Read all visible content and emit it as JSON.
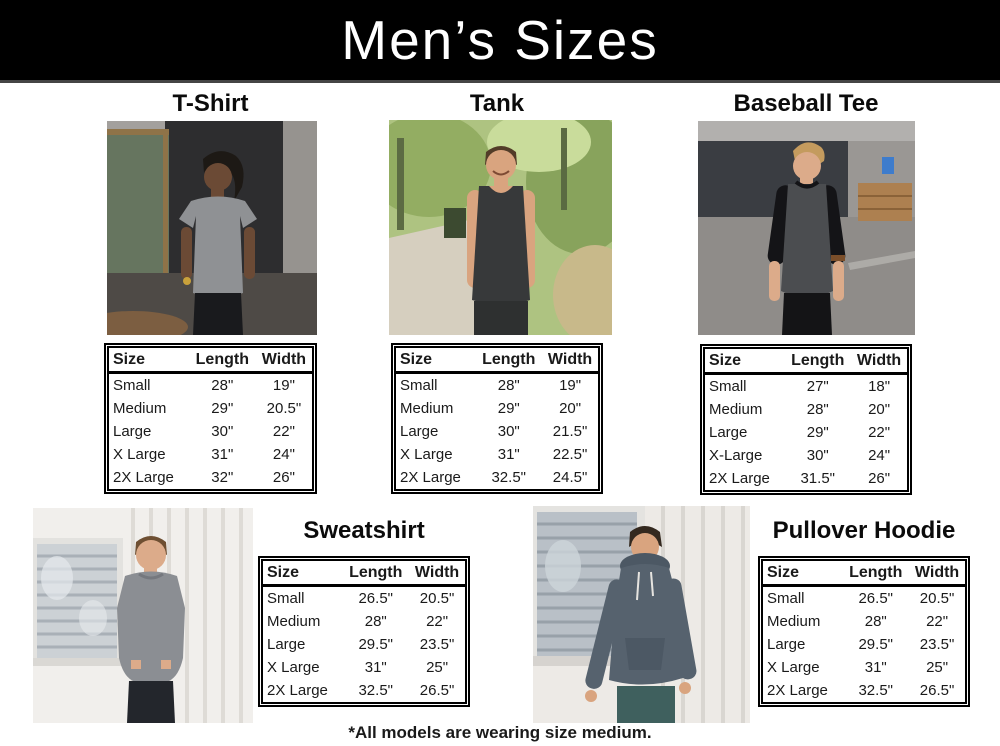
{
  "banner": {
    "title": "Men’s Sizes"
  },
  "footnote": "*All models are wearing size medium.",
  "colors": {
    "banner_bg": "#000000",
    "banner_text": "#ffffff",
    "banner_underline": "#454545",
    "page_bg": "#ffffff",
    "table_border": "#000000",
    "text": "#1a1a1a"
  },
  "photos": {
    "tshirt": {
      "alt": "man-in-heather-gray-tshirt",
      "garment": "#8f9194",
      "skin": "#6b4a35",
      "hair": "#1d1915",
      "pants": "#191a1d"
    },
    "tank": {
      "alt": "man-in-charcoal-tank-top",
      "garment": "#37393a",
      "skin": "#d9a47f",
      "hair": "#523c28",
      "pants": "#2e3030"
    },
    "baseball": {
      "alt": "man-in-raglan-baseball-tee",
      "garment": "#4b4d50",
      "sleeves": "#141417",
      "skin": "#dcab8a",
      "hair": "#c49b5e",
      "pants": "#141416"
    },
    "sweatshirt": {
      "alt": "man-in-gray-crew-sweatshirt",
      "garment": "#8b8e93",
      "skin": "#dcab8a",
      "hair": "#6e4f32",
      "pants": "#23262c"
    },
    "hoodie": {
      "alt": "man-in-slate-pullover-hoodie",
      "garment": "#56626e",
      "hood": "#4c5864",
      "skin": "#d9a47f",
      "hair": "#34291f",
      "pants": "#3f605e"
    }
  },
  "chart_data": [
    {
      "type": "table",
      "title": "T-Shirt",
      "columns": [
        "Size",
        "Length",
        "Width"
      ],
      "rows": [
        [
          "Small",
          "28\"",
          "19\""
        ],
        [
          "Medium",
          "29\"",
          "20.5\""
        ],
        [
          "Large",
          "30\"",
          "22\""
        ],
        [
          "X Large",
          "31\"",
          "24\""
        ],
        [
          "2X Large",
          "32\"",
          "26\""
        ]
      ]
    },
    {
      "type": "table",
      "title": "Tank",
      "columns": [
        "Size",
        "Length",
        "Width"
      ],
      "rows": [
        [
          "Small",
          "28\"",
          "19\""
        ],
        [
          "Medium",
          "29\"",
          "20\""
        ],
        [
          "Large",
          "30\"",
          "21.5\""
        ],
        [
          "X Large",
          "31\"",
          "22.5\""
        ],
        [
          "2X Large",
          "32.5\"",
          "24.5\""
        ]
      ]
    },
    {
      "type": "table",
      "title": "Baseball Tee",
      "columns": [
        "Size",
        "Length",
        "Width"
      ],
      "rows": [
        [
          "Small",
          "27\"",
          "18\""
        ],
        [
          "Medium",
          "28\"",
          "20\""
        ],
        [
          "Large",
          "29\"",
          "22\""
        ],
        [
          "X-Large",
          "30\"",
          "24\""
        ],
        [
          "2X Large",
          "31.5\"",
          "26\""
        ]
      ]
    },
    {
      "type": "table",
      "title": "Sweatshirt",
      "columns": [
        "Size",
        "Length",
        "Width"
      ],
      "rows": [
        [
          "Small",
          "26.5\"",
          "20.5\""
        ],
        [
          "Medium",
          "28\"",
          "22\""
        ],
        [
          "Large",
          "29.5\"",
          "23.5\""
        ],
        [
          "X Large",
          "31\"",
          "25\""
        ],
        [
          "2X Large",
          "32.5\"",
          "26.5\""
        ]
      ]
    },
    {
      "type": "table",
      "title": "Pullover Hoodie",
      "columns": [
        "Size",
        "Length",
        "Width"
      ],
      "rows": [
        [
          "Small",
          "26.5\"",
          "20.5\""
        ],
        [
          "Medium",
          "28\"",
          "22\""
        ],
        [
          "Large",
          "29.5\"",
          "23.5\""
        ],
        [
          "X Large",
          "31\"",
          "25\""
        ],
        [
          "2X Large",
          "32.5\"",
          "26.5\""
        ]
      ]
    }
  ]
}
